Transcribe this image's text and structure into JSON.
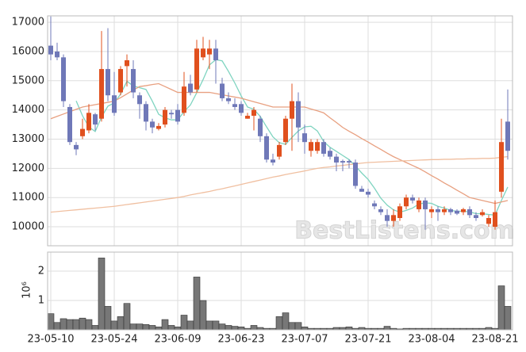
{
  "chart_data": {
    "type": "candlestick",
    "categories": [
      "23-05-10",
      null,
      null,
      null,
      null,
      null,
      null,
      null,
      null,
      null,
      "23-05-24",
      null,
      null,
      null,
      null,
      null,
      null,
      null,
      null,
      null,
      "23-06-09",
      null,
      null,
      null,
      null,
      null,
      null,
      null,
      null,
      null,
      "23-06-23",
      null,
      null,
      null,
      null,
      null,
      null,
      null,
      null,
      null,
      "23-07-07",
      null,
      null,
      null,
      null,
      null,
      null,
      null,
      null,
      null,
      "23-07-21",
      null,
      null,
      null,
      null,
      null,
      null,
      null,
      null,
      null,
      "23-08-04",
      null,
      null,
      null,
      null,
      null,
      null,
      null,
      null,
      null,
      "23-08-21",
      null,
      null
    ],
    "open": [
      16200,
      16000,
      15800,
      14100,
      12800,
      13100,
      13300,
      13850,
      13700,
      15400,
      14500,
      14600,
      15500,
      15400,
      14500,
      14200,
      13600,
      13350,
      13500,
      13900,
      14000,
      13900,
      14900,
      14700,
      15800,
      15900,
      16100,
      14900,
      14400,
      14200,
      14200,
      13700,
      13800,
      13700,
      13100,
      12300,
      12400,
      12900,
      13700,
      14300,
      13200,
      12600,
      12600,
      12900,
      12600,
      12400,
      12250,
      12250,
      12200,
      11300,
      11200,
      10800,
      10600,
      10400,
      10200,
      10300,
      10700,
      11000,
      10600,
      10900,
      10500,
      10600,
      10500,
      10600,
      10550,
      10500,
      10600,
      10400,
      10400,
      10100,
      10000,
      11200,
      13600
    ],
    "high": [
      17200,
      16300,
      15900,
      14200,
      12900,
      13700,
      14200,
      13900,
      16700,
      16800,
      15300,
      15500,
      15900,
      15700,
      14600,
      14300,
      13700,
      13550,
      14100,
      14000,
      14200,
      15300,
      15200,
      16400,
      16500,
      16400,
      16400,
      15100,
      14600,
      14400,
      14300,
      13900,
      14100,
      13800,
      13200,
      12500,
      12900,
      13800,
      14900,
      14600,
      13500,
      13000,
      13000,
      13000,
      12700,
      12500,
      12300,
      12300,
      12300,
      11400,
      11300,
      10900,
      10700,
      10600,
      10600,
      10800,
      11100,
      11100,
      11000,
      11000,
      10700,
      10700,
      10700,
      10650,
      10600,
      10650,
      10700,
      10500,
      10600,
      10400,
      10900,
      13700,
      14700
    ],
    "low": [
      15700,
      15700,
      14100,
      12800,
      12450,
      13000,
      13200,
      13300,
      13600,
      14300,
      13800,
      14500,
      14800,
      14400,
      13700,
      13300,
      13200,
      13300,
      13400,
      13700,
      13500,
      13800,
      14500,
      14600,
      15700,
      15400,
      14900,
      14300,
      14200,
      14000,
      13800,
      13700,
      13300,
      12900,
      12200,
      12100,
      12300,
      12800,
      12600,
      12900,
      12500,
      12400,
      12500,
      12400,
      12300,
      11900,
      11900,
      12000,
      11300,
      11200,
      11000,
      10600,
      10400,
      10000,
      10000,
      10200,
      10600,
      10800,
      10500,
      9900,
      10300,
      10200,
      10400,
      10400,
      10400,
      10400,
      10300,
      10200,
      10350,
      10000,
      9900,
      11000,
      12300
    ],
    "close": [
      15900,
      15800,
      14300,
      12900,
      12650,
      13350,
      13900,
      13500,
      15400,
      14500,
      13900,
      15400,
      15700,
      14600,
      14200,
      13600,
      13400,
      13450,
      14000,
      13850,
      13600,
      14800,
      14600,
      16100,
      16100,
      16100,
      15700,
      14400,
      14300,
      14100,
      13900,
      13800,
      14000,
      13100,
      12300,
      12200,
      12800,
      13700,
      14300,
      13400,
      12900,
      12900,
      12900,
      12500,
      12400,
      12200,
      12200,
      12200,
      11400,
      11200,
      11100,
      10700,
      10500,
      10200,
      10400,
      10700,
      11000,
      10900,
      10900,
      10600,
      10600,
      10500,
      10600,
      10500,
      10450,
      10600,
      10400,
      10300,
      10500,
      10300,
      10500,
      12900,
      12600
    ],
    "up_color": "#e0501e",
    "down_color": "#6f78b8",
    "series": [
      {
        "color": "#7fd4c0",
        "values": [
          null,
          null,
          null,
          null,
          14310,
          13800,
          13420,
          13260,
          13760,
          14130,
          14240,
          14540,
          14980,
          14820,
          14760,
          14700,
          14300,
          13850,
          13730,
          13660,
          13660,
          13940,
          14170,
          14590,
          15040,
          15540,
          15720,
          15680,
          15320,
          14920,
          14480,
          14100,
          14020,
          13780,
          13420,
          13080,
          12880,
          12820,
          13060,
          13280,
          13420,
          13440,
          13280,
          12920,
          12720,
          12580,
          12440,
          12300,
          12080,
          11840,
          11620,
          11320,
          10980,
          10740,
          10580,
          10500,
          10560,
          10640,
          10780,
          10820,
          10800,
          10700,
          10640,
          10560,
          10530,
          10530,
          10510,
          10450,
          10450,
          10420,
          10400,
          10900,
          11360
        ]
      },
      {
        "color": "#e8a080",
        "values": [
          13700,
          13780,
          13860,
          13940,
          14020,
          14100,
          14140,
          14180,
          14220,
          14260,
          14300,
          14420,
          14550,
          14680,
          14800,
          14830,
          14870,
          14900,
          14800,
          14700,
          14600,
          14600,
          14600,
          14600,
          14600,
          14600,
          14560,
          14520,
          14480,
          14440,
          14400,
          14340,
          14280,
          14220,
          14160,
          14100,
          14100,
          14100,
          14100,
          14100,
          14100,
          14030,
          13970,
          13900,
          13730,
          13570,
          13400,
          13270,
          13150,
          13020,
          12900,
          12770,
          12650,
          12520,
          12400,
          12300,
          12200,
          12100,
          12000,
          11880,
          11750,
          11630,
          11500,
          11380,
          11250,
          11130,
          11000,
          10950,
          10900,
          10850,
          10800,
          10850,
          10900
        ]
      },
      {
        "color": "#f0bfa0",
        "values": [
          10500,
          10520,
          10540,
          10560,
          10580,
          10600,
          10620,
          10640,
          10660,
          10680,
          10700,
          10730,
          10760,
          10790,
          10820,
          10850,
          10880,
          10910,
          10940,
          10970,
          11000,
          11040,
          11090,
          11130,
          11170,
          11210,
          11260,
          11300,
          11350,
          11400,
          11450,
          11500,
          11550,
          11600,
          11650,
          11700,
          11740,
          11790,
          11830,
          11870,
          11910,
          11960,
          12000,
          12030,
          12050,
          12080,
          12100,
          12130,
          12150,
          12180,
          12200,
          12210,
          12220,
          12230,
          12240,
          12250,
          12260,
          12270,
          12280,
          12290,
          12300,
          12300,
          12310,
          12310,
          12320,
          12320,
          12330,
          12330,
          12340,
          12340,
          12350,
          12380,
          12400
        ]
      }
    ],
    "ylim": [
      9350,
      17220
    ],
    "yticks": [
      10000,
      11000,
      12000,
      13000,
      14000,
      15000,
      16000,
      17000
    ],
    "grid": true,
    "volume": {
      "label": "10⁶",
      "color": "#777777",
      "ylim": [
        0,
        2.65
      ],
      "yticks": [
        1,
        2
      ],
      "values": [
        0.55,
        0.25,
        0.38,
        0.35,
        0.35,
        0.4,
        0.35,
        0.15,
        2.45,
        0.8,
        0.3,
        0.45,
        0.9,
        0.2,
        0.2,
        0.18,
        0.15,
        0.1,
        0.35,
        0.15,
        0.1,
        0.5,
        0.3,
        1.8,
        1.0,
        0.3,
        0.3,
        0.2,
        0.15,
        0.12,
        0.1,
        0.05,
        0.15,
        0.08,
        0.05,
        0.05,
        0.45,
        0.58,
        0.25,
        0.25,
        0.1,
        0.05,
        0.05,
        0.05,
        0.05,
        0.08,
        0.08,
        0.1,
        0.05,
        0.08,
        0.05,
        0.05,
        0.05,
        0.12,
        0.05,
        0.03,
        0.05,
        0.05,
        0.05,
        0.05,
        0.05,
        0.05,
        0.05,
        0.05,
        0.05,
        0.05,
        0.05,
        0.05,
        0.05,
        0.08,
        0.05,
        1.5,
        0.8
      ]
    },
    "watermark": "BestListens.com"
  }
}
